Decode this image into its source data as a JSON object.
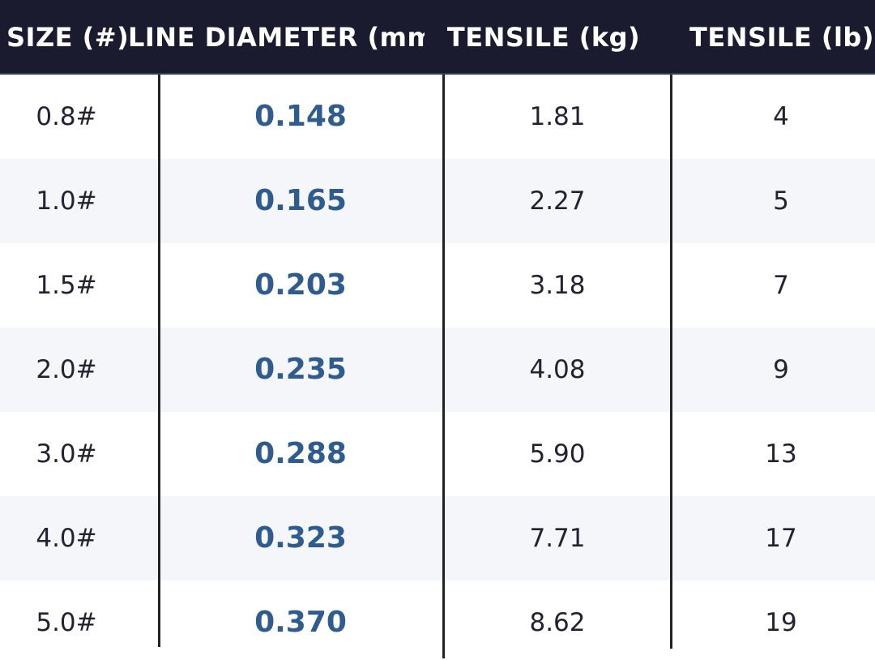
{
  "table": {
    "headers": [
      "SIZE (#)",
      "LINE DIAMETER (mm)",
      "TENSILE (kg)",
      "TENSILE (lb)"
    ],
    "rows": [
      [
        "0.8#",
        "0.148",
        "1.81",
        "4"
      ],
      [
        "1.0#",
        "0.165",
        "2.27",
        "5"
      ],
      [
        "1.5#",
        "0.203",
        "3.18",
        "7"
      ],
      [
        "2.0#",
        "0.235",
        "4.08",
        "9"
      ],
      [
        "3.0#",
        "0.288",
        "5.90",
        "13"
      ],
      [
        "4.0#",
        "0.323",
        "7.71",
        "17"
      ],
      [
        "5.0#",
        "0.370",
        "8.62",
        "19"
      ]
    ]
  },
  "colors": {
    "header_background": "#1b1b2f",
    "header_text": "#ffffff",
    "diameter_text": "#2f5c8f",
    "alt_row_background": "#f4f6fa"
  }
}
